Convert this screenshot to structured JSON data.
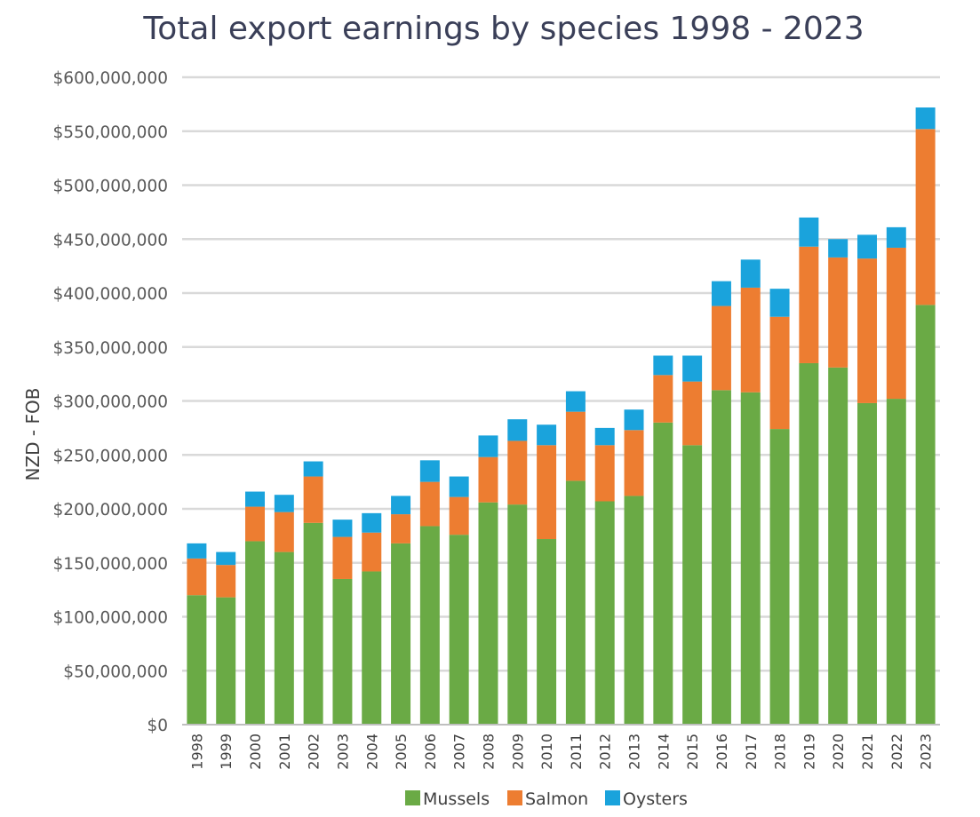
{
  "chart_data": {
    "type": "bar",
    "stacked": true,
    "title": "Total export earnings by species 1998 - 2023",
    "xlabel": "",
    "ylabel": "NZD - FOB",
    "ylim": [
      0,
      600000000
    ],
    "y_ticks": [
      0,
      50000000,
      100000000,
      150000000,
      200000000,
      250000000,
      300000000,
      350000000,
      400000000,
      450000000,
      500000000,
      550000000,
      600000000
    ],
    "y_tick_labels": [
      "$0",
      "$50,000,000",
      "$100,000,000",
      "$150,000,000",
      "$200,000,000",
      "$250,000,000",
      "$300,000,000",
      "$350,000,000",
      "$400,000,000",
      "$450,000,000",
      "$500,000,000",
      "$550,000,000",
      "$600,000,000"
    ],
    "grid": true,
    "legend_position": "bottom",
    "categories": [
      "1998",
      "1999",
      "2000",
      "2001",
      "2002",
      "2003",
      "2004",
      "2005",
      "2006",
      "2007",
      "2008",
      "2009",
      "2010",
      "2011",
      "2012",
      "2013",
      "2014",
      "2015",
      "2016",
      "2017",
      "2018",
      "2019",
      "2020",
      "2021",
      "2022",
      "2023"
    ],
    "series": [
      {
        "name": "Mussels",
        "color": "#6aaa45",
        "values": [
          120000000,
          118000000,
          170000000,
          160000000,
          187000000,
          135000000,
          142000000,
          168000000,
          184000000,
          176000000,
          206000000,
          204000000,
          172000000,
          226000000,
          207000000,
          212000000,
          280000000,
          259000000,
          310000000,
          308000000,
          274000000,
          335000000,
          331000000,
          298000000,
          302000000,
          389000000
        ]
      },
      {
        "name": "Salmon",
        "color": "#ed7d31",
        "values": [
          34000000,
          30000000,
          32000000,
          37000000,
          43000000,
          39000000,
          36000000,
          27000000,
          41000000,
          35000000,
          42000000,
          59000000,
          87000000,
          64000000,
          52000000,
          61000000,
          44000000,
          59000000,
          78000000,
          97000000,
          104000000,
          108000000,
          102000000,
          134000000,
          140000000,
          163000000
        ]
      },
      {
        "name": "Oysters",
        "color": "#1aa3dc",
        "values": [
          14000000,
          12000000,
          14000000,
          16000000,
          14000000,
          16000000,
          18000000,
          17000000,
          20000000,
          19000000,
          20000000,
          20000000,
          19000000,
          19000000,
          16000000,
          19000000,
          18000000,
          24000000,
          23000000,
          26000000,
          26000000,
          27000000,
          17000000,
          22000000,
          19000000,
          20000000
        ]
      }
    ]
  }
}
